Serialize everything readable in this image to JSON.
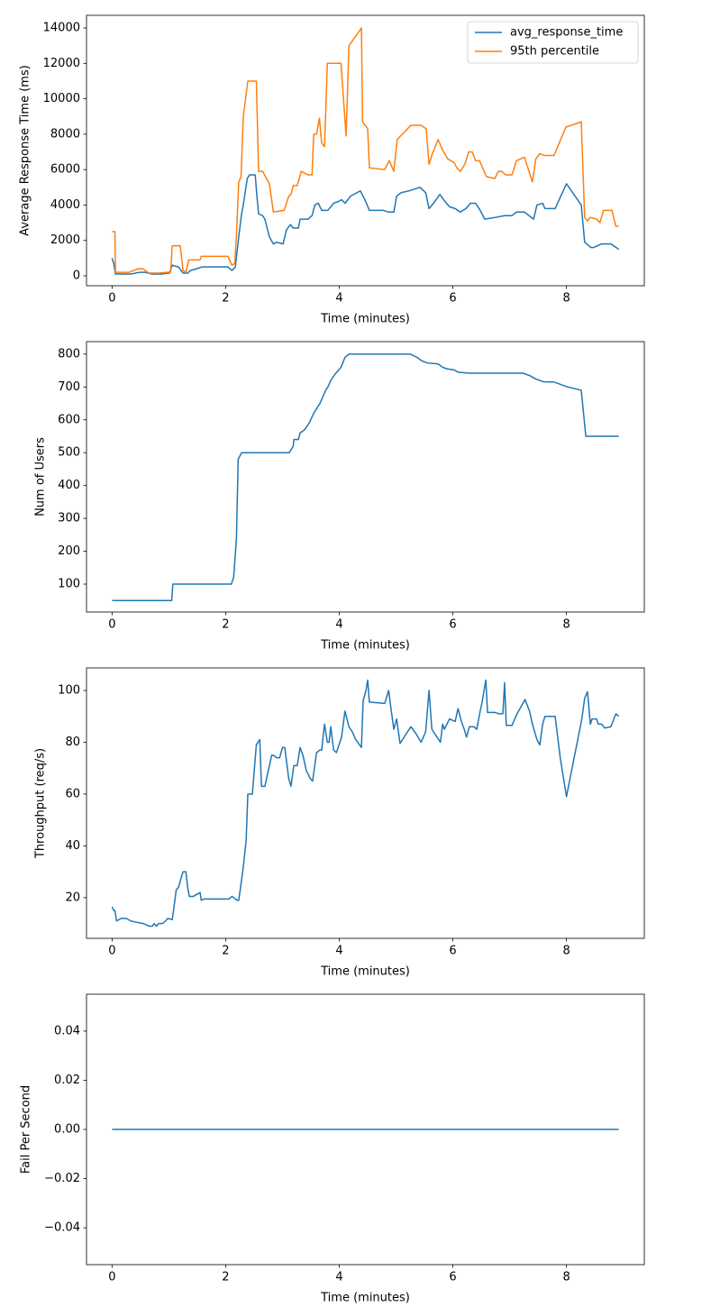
{
  "chart_data": [
    {
      "type": "line",
      "xlabel": "Time (minutes)",
      "ylabel": "Average Response Time (ms)",
      "xlim": [
        -0.45,
        9.37
      ],
      "xticks": [
        0,
        2,
        4,
        6,
        8
      ],
      "ylim": [
        -560,
        14714
      ],
      "yticks": [
        0,
        2000,
        4000,
        6000,
        8000,
        10000,
        12000,
        14000
      ],
      "legend": "upper right",
      "series": [
        {
          "name": "avg_response_time",
          "color": "#1f77b4",
          "x": [
            0,
            0.03,
            0.06,
            0.33,
            0.49,
            0.57,
            0.7,
            0.86,
            1.01,
            1.06,
            1.17,
            1.25,
            1.33,
            1.38,
            1.49,
            1.58,
            2.04,
            2.11,
            2.17,
            2.23,
            2.28,
            2.31,
            2.38,
            2.42,
            2.52,
            2.55,
            2.58,
            2.65,
            2.69,
            2.77,
            2.84,
            2.9,
            3.01,
            3.07,
            3.14,
            3.19,
            3.28,
            3.31,
            3.45,
            3.52,
            3.57,
            3.63,
            3.69,
            3.8,
            3.9,
            3.99,
            4.04,
            4.1,
            4.2,
            4.37,
            4.45,
            4.53,
            4.77,
            4.87,
            4.96,
            5.01,
            5.09,
            5.23,
            5.42,
            5.52,
            5.58,
            5.66,
            5.77,
            5.86,
            5.94,
            6.04,
            6.13,
            6.23,
            6.31,
            6.4,
            6.48,
            6.56,
            6.75,
            6.91,
            7.04,
            7.12,
            7.26,
            7.42,
            7.48,
            7.58,
            7.62,
            7.8,
            8.0,
            8.26,
            8.32,
            8.43,
            8.48,
            8.61,
            8.78,
            8.92
          ],
          "values": [
            1000,
            700,
            100,
            100,
            200,
            200,
            100,
            100,
            150,
            600,
            500,
            150,
            150,
            300,
            400,
            500,
            500,
            300,
            500,
            2200,
            3500,
            4000,
            5500,
            5700,
            5700,
            4500,
            3500,
            3400,
            3200,
            2200,
            1800,
            1900,
            1800,
            2600,
            2900,
            2700,
            2700,
            3200,
            3200,
            3400,
            4000,
            4100,
            3700,
            3700,
            4100,
            4200,
            4300,
            4100,
            4500,
            4800,
            4300,
            3700,
            3700,
            3600,
            3600,
            4500,
            4700,
            4800,
            5000,
            4700,
            3800,
            4100,
            4600,
            4200,
            3900,
            3800,
            3600,
            3800,
            4100,
            4100,
            3700,
            3200,
            3300,
            3400,
            3400,
            3600,
            3600,
            3200,
            4000,
            4100,
            3800,
            3800,
            5200,
            4000,
            1900,
            1600,
            1600,
            1800,
            1800,
            1500
          ]
        },
        {
          "name": "95th percentile",
          "color": "#ff7f0e",
          "x": [
            0,
            0.05,
            0.06,
            0.3,
            0.38,
            0.46,
            0.54,
            0.65,
            0.81,
            0.97,
            1.03,
            1.06,
            1.2,
            1.25,
            1.3,
            1.35,
            1.55,
            1.57,
            2.04,
            2.11,
            2.16,
            2.19,
            2.23,
            2.27,
            2.31,
            2.39,
            2.54,
            2.58,
            2.65,
            2.77,
            2.84,
            3.03,
            3.11,
            3.15,
            3.19,
            3.26,
            3.33,
            3.45,
            3.52,
            3.55,
            3.6,
            3.65,
            3.69,
            3.74,
            3.79,
            4.03,
            4.12,
            4.17,
            4.39,
            4.41,
            4.5,
            4.53,
            4.8,
            4.88,
            4.96,
            5.02,
            5.26,
            5.44,
            5.53,
            5.58,
            5.64,
            5.74,
            5.82,
            5.91,
            6.02,
            6.07,
            6.13,
            6.21,
            6.28,
            6.34,
            6.4,
            6.47,
            6.59,
            6.74,
            6.8,
            6.86,
            6.93,
            7.04,
            7.12,
            7.26,
            7.4,
            7.46,
            7.53,
            7.61,
            7.78,
            7.99,
            8.26,
            8.32,
            8.37,
            8.42,
            8.53,
            8.59,
            8.65,
            8.8,
            8.87,
            8.92
          ],
          "values": [
            2500,
            2500,
            200,
            200,
            300,
            400,
            400,
            150,
            150,
            200,
            200,
            1700,
            1700,
            300,
            200,
            900,
            900,
            1100,
            1100,
            600,
            700,
            2300,
            5300,
            5600,
            9000,
            11000,
            11000,
            5900,
            5900,
            5200,
            3600,
            3700,
            4500,
            4600,
            5100,
            5100,
            5900,
            5700,
            5700,
            8000,
            8000,
            8900,
            7500,
            7300,
            12000,
            12000,
            7900,
            13000,
            14000,
            8700,
            8300,
            6100,
            6000,
            6500,
            5900,
            7700,
            8500,
            8500,
            8300,
            6300,
            6900,
            7700,
            7100,
            6600,
            6400,
            6100,
            5900,
            6300,
            7000,
            7000,
            6500,
            6500,
            5600,
            5500,
            5900,
            5900,
            5700,
            5700,
            6500,
            6700,
            5300,
            6600,
            6900,
            6800,
            6800,
            8400,
            8700,
            3300,
            3100,
            3300,
            3200,
            3000,
            3700,
            3700,
            2800,
            2800
          ]
        }
      ]
    },
    {
      "type": "line",
      "xlabel": "Time (minutes)",
      "ylabel": "Num of Users",
      "color": "#1f77b4",
      "xlim": [
        -0.45,
        9.37
      ],
      "xticks": [
        0,
        2,
        4,
        6,
        8
      ],
      "ylim": [
        15,
        838
      ],
      "yticks": [
        100,
        200,
        300,
        400,
        500,
        600,
        700,
        800
      ],
      "x": [
        0,
        1.05,
        1.07,
        2.1,
        2.14,
        2.19,
        2.22,
        2.25,
        2.28,
        3.12,
        3.19,
        3.2,
        3.28,
        3.31,
        3.39,
        3.47,
        3.55,
        3.66,
        3.71,
        3.76,
        3.8,
        3.85,
        3.93,
        4.03,
        4.1,
        4.17,
        5.25,
        5.37,
        5.45,
        5.55,
        5.74,
        5.82,
        5.9,
        6.02,
        6.09,
        6.28,
        7.23,
        7.35,
        7.45,
        7.59,
        7.78,
        8.02,
        8.26,
        8.34,
        8.92
      ],
      "values": [
        50,
        50,
        100,
        100,
        120,
        240,
        480,
        490,
        500,
        500,
        520,
        540,
        540,
        560,
        570,
        590,
        620,
        650,
        670,
        690,
        700,
        720,
        740,
        760,
        790,
        800,
        800,
        790,
        780,
        773,
        770,
        760,
        755,
        752,
        745,
        742,
        742,
        735,
        725,
        716,
        715,
        700,
        690,
        550,
        550
      ]
    },
    {
      "type": "line",
      "xlabel": "Time (minutes)",
      "ylabel": "Throughput (req/s)",
      "color": "#1f77b4",
      "xlim": [
        -0.45,
        9.37
      ],
      "xticks": [
        0,
        2,
        4,
        6,
        8
      ],
      "ylim": [
        4.3,
        108.7
      ],
      "yticks": [
        20,
        40,
        60,
        80,
        100
      ],
      "x": [
        0,
        0.03,
        0.05,
        0.08,
        0.16,
        0.25,
        0.33,
        0.43,
        0.55,
        0.65,
        0.71,
        0.74,
        0.78,
        0.82,
        0.89,
        0.94,
        0.98,
        1.06,
        1.13,
        1.17,
        1.22,
        1.25,
        1.3,
        1.33,
        1.36,
        1.43,
        1.51,
        1.55,
        1.57,
        1.62,
        2.06,
        2.11,
        2.2,
        2.23,
        2.3,
        2.36,
        2.39,
        2.47,
        2.54,
        2.6,
        2.63,
        2.69,
        2.76,
        2.81,
        2.84,
        2.9,
        2.95,
        3.0,
        3.04,
        3.11,
        3.15,
        3.2,
        3.26,
        3.31,
        3.36,
        3.42,
        3.49,
        3.53,
        3.6,
        3.66,
        3.69,
        3.74,
        3.79,
        3.82,
        3.85,
        3.9,
        3.95,
        4.01,
        4.04,
        4.1,
        4.17,
        4.23,
        4.29,
        4.39,
        4.42,
        4.47,
        4.5,
        4.53,
        4.8,
        4.87,
        4.91,
        4.96,
        5.01,
        5.07,
        5.17,
        5.26,
        5.36,
        5.44,
        5.52,
        5.58,
        5.63,
        5.78,
        5.82,
        5.85,
        5.94,
        6.04,
        6.09,
        6.15,
        6.2,
        6.24,
        6.29,
        6.37,
        6.42,
        6.48,
        6.51,
        6.58,
        6.61,
        6.74,
        6.81,
        6.88,
        6.91,
        6.94,
        7.04,
        7.13,
        7.27,
        7.35,
        7.4,
        7.48,
        7.53,
        7.58,
        7.62,
        7.8,
        7.89,
        8.0,
        8.08,
        8.18,
        8.27,
        8.32,
        8.37,
        8.42,
        8.45,
        8.53,
        8.56,
        8.62,
        8.67,
        8.78,
        8.87,
        8.92
      ],
      "values": [
        16.5,
        15,
        15,
        11,
        12,
        12,
        11,
        10.5,
        10,
        9,
        9,
        10,
        9,
        10,
        10,
        11,
        12,
        11.5,
        23,
        24,
        28,
        30,
        30,
        24,
        20.5,
        20.5,
        21.5,
        22,
        19,
        19.5,
        19.5,
        20.5,
        19,
        19,
        30,
        42,
        60,
        60,
        79,
        81,
        63,
        63,
        70,
        75,
        75,
        74,
        74,
        78,
        78,
        66,
        63,
        71,
        71,
        78,
        75,
        69,
        66,
        65,
        76,
        77,
        77,
        87,
        80,
        80,
        86,
        77,
        76,
        80,
        82,
        92,
        86,
        84,
        81,
        78,
        96,
        100,
        104,
        95.5,
        95,
        100,
        93,
        85,
        89,
        79.5,
        83,
        86,
        83,
        80,
        84,
        100,
        85,
        80,
        87,
        85,
        89,
        88,
        93,
        88,
        85,
        82,
        86,
        86,
        85,
        92,
        95,
        104,
        91.5,
        91.5,
        91,
        91,
        103,
        86.5,
        86.5,
        91,
        96.5,
        92,
        87,
        81,
        79,
        87,
        90,
        90,
        74,
        59,
        68,
        79,
        89,
        97,
        99.5,
        87,
        89,
        89,
        87,
        87,
        85.5,
        86,
        91,
        90
      ]
    },
    {
      "type": "line",
      "xlabel": "Time (minutes)",
      "ylabel": "Fail Per Second",
      "color": "#1f77b4",
      "xlim": [
        -0.45,
        9.37
      ],
      "xticks": [
        0,
        2,
        4,
        6,
        8
      ],
      "ylim": [
        -0.055,
        0.055
      ],
      "yticks": [
        {
          "value": -0.04,
          "label": "−0.04"
        },
        {
          "value": -0.02,
          "label": "−0.02"
        },
        {
          "value": 0,
          "label": "0.00"
        },
        {
          "value": 0.02,
          "label": "0.02"
        },
        {
          "value": 0.04,
          "label": "0.04"
        }
      ],
      "x": [
        0,
        8.92
      ],
      "values": [
        0,
        0
      ]
    }
  ]
}
